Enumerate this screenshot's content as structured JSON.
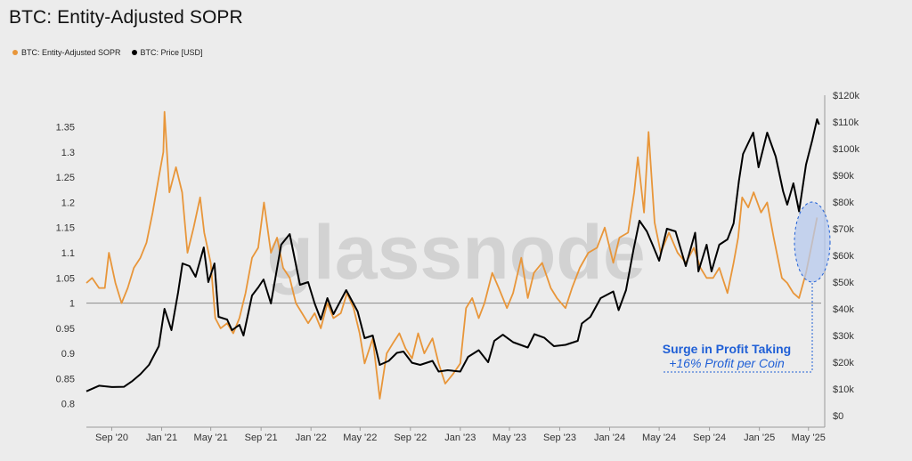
{
  "title": "BTC: Entity-Adjusted SOPR",
  "legend": {
    "sopr_label": "BTC: Entity-Adjusted SOPR",
    "price_label": "BTC: Price [USD]"
  },
  "watermark": "glassnode",
  "annotation": {
    "title": "Surge in Profit Taking",
    "subtitle": "+16% Profit per Coin"
  },
  "colors": {
    "sopr": "#e8963a",
    "price": "#000000",
    "annotation": "#1f5fd6",
    "highlight_fill": "#b7c9ee",
    "baseline": "#8a8a8a",
    "background": "#ececec"
  },
  "chart_data": {
    "type": "line",
    "title": "BTC: Entity-Adjusted SOPR",
    "x_tick_labels": [
      "Sep '20",
      "Jan '21",
      "May '21",
      "Sep '21",
      "Jan '22",
      "May '22",
      "Sep '22",
      "Jan '23",
      "May '23",
      "Sep '23",
      "Jan '24",
      "May '24",
      "Sep '24",
      "Jan '25",
      "May '25"
    ],
    "x_tick_dates": [
      "2020-09-01",
      "2021-01-01",
      "2021-05-01",
      "2021-09-01",
      "2022-01-01",
      "2022-05-01",
      "2022-09-01",
      "2023-01-01",
      "2023-05-01",
      "2023-09-01",
      "2024-01-01",
      "2024-05-01",
      "2024-09-01",
      "2025-01-01",
      "2025-05-01"
    ],
    "x_range": [
      "2020-07-01",
      "2025-06-01"
    ],
    "left_axis": {
      "ticks": [
        "0.8",
        "0.85",
        "0.9",
        "0.95",
        "1",
        "1.05",
        "1.1",
        "1.15",
        "1.2",
        "1.25",
        "1.3",
        "1.35"
      ],
      "ylim": [
        0.78,
        1.39
      ]
    },
    "right_axis": {
      "ticks": [
        "$0",
        "$10k",
        "$20k",
        "$30k",
        "$40k",
        "$50k",
        "$60k",
        "$70k",
        "$80k",
        "$90k",
        "$100k",
        "$110k",
        "$120k"
      ],
      "ylim": [
        0,
        120000
      ]
    },
    "baseline_value": 1,
    "series": [
      {
        "name": "BTC: Entity-Adjusted SOPR",
        "axis": "left",
        "points": [
          [
            "2020-07-01",
            1.04
          ],
          [
            "2020-07-15",
            1.05
          ],
          [
            "2020-08-01",
            1.03
          ],
          [
            "2020-08-15",
            1.03
          ],
          [
            "2020-08-25",
            1.1
          ],
          [
            "2020-09-10",
            1.04
          ],
          [
            "2020-09-25",
            1.0
          ],
          [
            "2020-10-10",
            1.03
          ],
          [
            "2020-10-25",
            1.07
          ],
          [
            "2020-11-10",
            1.09
          ],
          [
            "2020-11-25",
            1.12
          ],
          [
            "2020-12-10",
            1.18
          ],
          [
            "2020-12-25",
            1.25
          ],
          [
            "2021-01-05",
            1.3
          ],
          [
            "2021-01-08",
            1.38
          ],
          [
            "2021-01-20",
            1.22
          ],
          [
            "2021-02-05",
            1.27
          ],
          [
            "2021-02-20",
            1.22
          ],
          [
            "2021-03-05",
            1.1
          ],
          [
            "2021-03-20",
            1.15
          ],
          [
            "2021-04-05",
            1.21
          ],
          [
            "2021-04-15",
            1.14
          ],
          [
            "2021-05-01",
            1.08
          ],
          [
            "2021-05-12",
            0.97
          ],
          [
            "2021-05-25",
            0.95
          ],
          [
            "2021-06-10",
            0.96
          ],
          [
            "2021-06-25",
            0.94
          ],
          [
            "2021-07-10",
            0.97
          ],
          [
            "2021-07-25",
            1.02
          ],
          [
            "2021-08-10",
            1.09
          ],
          [
            "2021-08-25",
            1.11
          ],
          [
            "2021-09-08",
            1.2
          ],
          [
            "2021-09-25",
            1.1
          ],
          [
            "2021-10-10",
            1.13
          ],
          [
            "2021-10-25",
            1.07
          ],
          [
            "2021-11-10",
            1.05
          ],
          [
            "2021-11-25",
            1.0
          ],
          [
            "2021-12-10",
            0.98
          ],
          [
            "2021-12-25",
            0.96
          ],
          [
            "2022-01-10",
            0.98
          ],
          [
            "2022-01-25",
            0.95
          ],
          [
            "2022-02-10",
            1.0
          ],
          [
            "2022-02-25",
            0.97
          ],
          [
            "2022-03-15",
            0.98
          ],
          [
            "2022-03-30",
            1.02
          ],
          [
            "2022-04-15",
            0.99
          ],
          [
            "2022-04-30",
            0.94
          ],
          [
            "2022-05-12",
            0.88
          ],
          [
            "2022-06-01",
            0.93
          ],
          [
            "2022-06-18",
            0.81
          ],
          [
            "2022-07-05",
            0.9
          ],
          [
            "2022-07-20",
            0.92
          ],
          [
            "2022-08-05",
            0.94
          ],
          [
            "2022-08-20",
            0.91
          ],
          [
            "2022-09-05",
            0.89
          ],
          [
            "2022-09-20",
            0.94
          ],
          [
            "2022-10-05",
            0.9
          ],
          [
            "2022-10-25",
            0.93
          ],
          [
            "2022-11-09",
            0.88
          ],
          [
            "2022-11-25",
            0.84
          ],
          [
            "2022-12-15",
            0.86
          ],
          [
            "2023-01-01",
            0.88
          ],
          [
            "2023-01-15",
            0.99
          ],
          [
            "2023-01-30",
            1.01
          ],
          [
            "2023-02-15",
            0.97
          ],
          [
            "2023-03-01",
            1.0
          ],
          [
            "2023-03-20",
            1.06
          ],
          [
            "2023-04-05",
            1.03
          ],
          [
            "2023-04-25",
            0.99
          ],
          [
            "2023-05-10",
            1.02
          ],
          [
            "2023-05-30",
            1.09
          ],
          [
            "2023-06-15",
            1.01
          ],
          [
            "2023-06-30",
            1.06
          ],
          [
            "2023-07-20",
            1.08
          ],
          [
            "2023-08-10",
            1.03
          ],
          [
            "2023-08-25",
            1.01
          ],
          [
            "2023-09-15",
            0.99
          ],
          [
            "2023-10-01",
            1.03
          ],
          [
            "2023-10-20",
            1.07
          ],
          [
            "2023-11-10",
            1.1
          ],
          [
            "2023-12-01",
            1.11
          ],
          [
            "2023-12-20",
            1.15
          ],
          [
            "2024-01-10",
            1.08
          ],
          [
            "2024-01-25",
            1.13
          ],
          [
            "2024-02-15",
            1.14
          ],
          [
            "2024-03-01",
            1.22
          ],
          [
            "2024-03-10",
            1.29
          ],
          [
            "2024-03-25",
            1.18
          ],
          [
            "2024-04-05",
            1.34
          ],
          [
            "2024-04-20",
            1.16
          ],
          [
            "2024-05-05",
            1.1
          ],
          [
            "2024-05-25",
            1.14
          ],
          [
            "2024-06-15",
            1.1
          ],
          [
            "2024-07-05",
            1.08
          ],
          [
            "2024-07-25",
            1.11
          ],
          [
            "2024-08-10",
            1.07
          ],
          [
            "2024-08-25",
            1.05
          ],
          [
            "2024-09-10",
            1.05
          ],
          [
            "2024-09-25",
            1.07
          ],
          [
            "2024-10-15",
            1.02
          ],
          [
            "2024-10-30",
            1.08
          ],
          [
            "2024-11-10",
            1.13
          ],
          [
            "2024-11-20",
            1.21
          ],
          [
            "2024-12-05",
            1.19
          ],
          [
            "2024-12-18",
            1.22
          ],
          [
            "2025-01-05",
            1.18
          ],
          [
            "2025-01-20",
            1.2
          ],
          [
            "2025-02-05",
            1.13
          ],
          [
            "2025-02-25",
            1.05
          ],
          [
            "2025-03-10",
            1.04
          ],
          [
            "2025-03-25",
            1.02
          ],
          [
            "2025-04-08",
            1.01
          ],
          [
            "2025-04-25",
            1.06
          ],
          [
            "2025-05-10",
            1.12
          ],
          [
            "2025-05-22",
            1.17
          ]
        ]
      },
      {
        "name": "BTC: Price [USD]",
        "axis": "right",
        "points": [
          [
            "2020-07-01",
            9100
          ],
          [
            "2020-08-01",
            11200
          ],
          [
            "2020-09-01",
            10700
          ],
          [
            "2020-10-01",
            10800
          ],
          [
            "2020-10-20",
            12800
          ],
          [
            "2020-11-10",
            15500
          ],
          [
            "2020-12-01",
            19000
          ],
          [
            "2020-12-25",
            26000
          ],
          [
            "2021-01-08",
            40000
          ],
          [
            "2021-01-25",
            32000
          ],
          [
            "2021-02-10",
            46000
          ],
          [
            "2021-02-21",
            57000
          ],
          [
            "2021-03-10",
            56000
          ],
          [
            "2021-03-25",
            52000
          ],
          [
            "2021-04-14",
            63000
          ],
          [
            "2021-04-25",
            50000
          ],
          [
            "2021-05-10",
            57000
          ],
          [
            "2021-05-20",
            37000
          ],
          [
            "2021-06-10",
            36000
          ],
          [
            "2021-06-22",
            32000
          ],
          [
            "2021-07-10",
            34000
          ],
          [
            "2021-07-20",
            30000
          ],
          [
            "2021-08-10",
            45000
          ],
          [
            "2021-08-25",
            48000
          ],
          [
            "2021-09-07",
            51000
          ],
          [
            "2021-09-25",
            42000
          ],
          [
            "2021-10-20",
            64000
          ],
          [
            "2021-11-10",
            68000
          ],
          [
            "2021-12-05",
            49000
          ],
          [
            "2021-12-25",
            50000
          ],
          [
            "2022-01-10",
            42000
          ],
          [
            "2022-01-25",
            36000
          ],
          [
            "2022-02-10",
            44000
          ],
          [
            "2022-02-25",
            38000
          ],
          [
            "2022-03-28",
            47000
          ],
          [
            "2022-04-25",
            39000
          ],
          [
            "2022-05-12",
            29000
          ],
          [
            "2022-06-01",
            30000
          ],
          [
            "2022-06-18",
            19000
          ],
          [
            "2022-07-10",
            20500
          ],
          [
            "2022-07-30",
            23500
          ],
          [
            "2022-08-15",
            24000
          ],
          [
            "2022-09-05",
            19800
          ],
          [
            "2022-09-25",
            19000
          ],
          [
            "2022-10-25",
            20500
          ],
          [
            "2022-11-09",
            16500
          ],
          [
            "2022-12-01",
            17000
          ],
          [
            "2023-01-01",
            16500
          ],
          [
            "2023-01-20",
            22000
          ],
          [
            "2023-02-15",
            24500
          ],
          [
            "2023-03-10",
            20000
          ],
          [
            "2023-03-25",
            28000
          ],
          [
            "2023-04-15",
            30300
          ],
          [
            "2023-05-10",
            27500
          ],
          [
            "2023-06-15",
            25500
          ],
          [
            "2023-07-01",
            30500
          ],
          [
            "2023-07-25",
            29200
          ],
          [
            "2023-08-18",
            26000
          ],
          [
            "2023-09-15",
            26500
          ],
          [
            "2023-10-15",
            28000
          ],
          [
            "2023-10-25",
            34500
          ],
          [
            "2023-11-15",
            37000
          ],
          [
            "2023-12-10",
            44000
          ],
          [
            "2024-01-10",
            46500
          ],
          [
            "2024-01-23",
            39500
          ],
          [
            "2024-02-10",
            47000
          ],
          [
            "2024-02-28",
            62000
          ],
          [
            "2024-03-14",
            73000
          ],
          [
            "2024-04-01",
            69000
          ],
          [
            "2024-04-15",
            64000
          ],
          [
            "2024-05-01",
            58000
          ],
          [
            "2024-05-20",
            70000
          ],
          [
            "2024-06-10",
            69000
          ],
          [
            "2024-07-05",
            56000
          ],
          [
            "2024-07-28",
            68500
          ],
          [
            "2024-08-05",
            54000
          ],
          [
            "2024-08-25",
            64000
          ],
          [
            "2024-09-06",
            54000
          ],
          [
            "2024-09-25",
            64000
          ],
          [
            "2024-10-15",
            66000
          ],
          [
            "2024-10-30",
            72000
          ],
          [
            "2024-11-12",
            88000
          ],
          [
            "2024-11-22",
            98000
          ],
          [
            "2024-12-17",
            106000
          ],
          [
            "2024-12-30",
            93000
          ],
          [
            "2025-01-20",
            106000
          ],
          [
            "2025-02-10",
            97000
          ],
          [
            "2025-02-28",
            84000
          ],
          [
            "2025-03-10",
            79000
          ],
          [
            "2025-03-25",
            87000
          ],
          [
            "2025-04-08",
            76500
          ],
          [
            "2025-04-25",
            94000
          ],
          [
            "2025-05-10",
            103000
          ],
          [
            "2025-05-22",
            111000
          ],
          [
            "2025-05-27",
            109000
          ]
        ]
      }
    ]
  }
}
